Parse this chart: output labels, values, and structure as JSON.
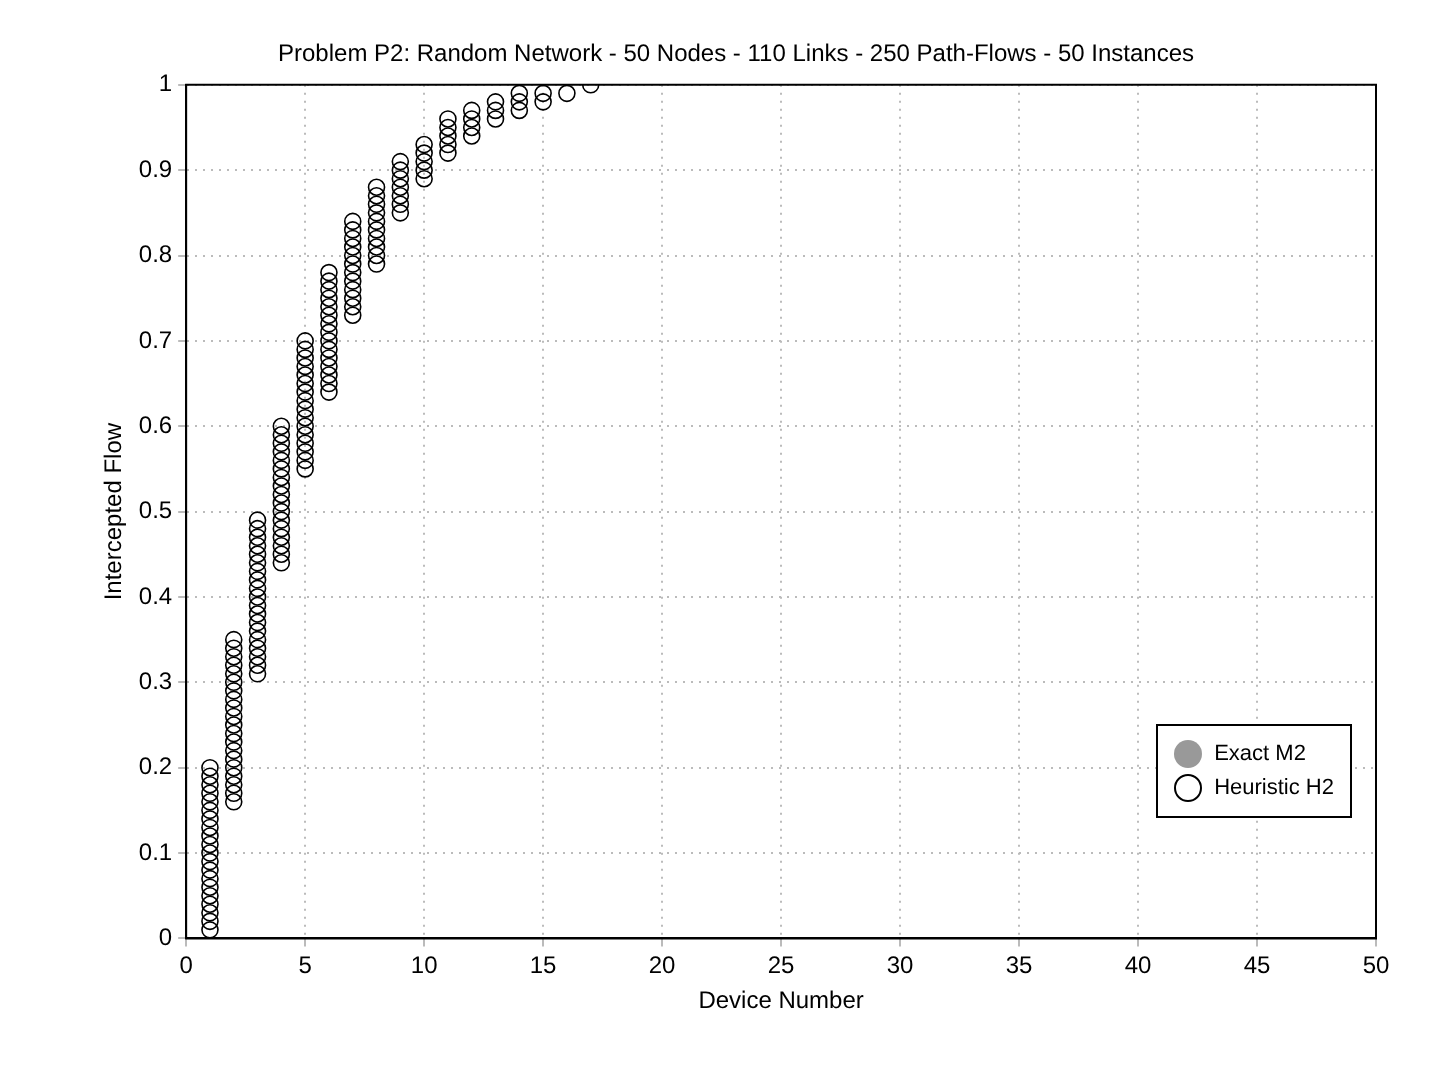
{
  "chart_data": {
    "type": "scatter",
    "title": "Problem P2: Random Network - 50 Nodes - 110 Links - 250 Path-Flows - 50 Instances",
    "xlabel": "Device Number",
    "ylabel": "Intercepted Flow",
    "xlim": [
      0,
      50
    ],
    "xticks": [
      0,
      5,
      10,
      15,
      20,
      25,
      30,
      35,
      40,
      45,
      50
    ],
    "ylim": [
      0,
      1
    ],
    "yticks": [
      0,
      0.1,
      0.2,
      0.3,
      0.4,
      0.5,
      0.6,
      0.7,
      0.8,
      0.9,
      1
    ],
    "grid": true,
    "legend": "bottom right",
    "marker": "circle",
    "series": [
      {
        "name": "Exact M2",
        "color": "#999999"
      },
      {
        "name": "Heuristic H2",
        "color": "#000000",
        "x": [
          1,
          1,
          1,
          1,
          1,
          1,
          1,
          1,
          1,
          1,
          1,
          1,
          1,
          1,
          1,
          1,
          1,
          1,
          1,
          1,
          2,
          2,
          2,
          2,
          2,
          2,
          2,
          2,
          2,
          2,
          2,
          2,
          2,
          2,
          2,
          2,
          2,
          2,
          2,
          2,
          3,
          3,
          3,
          3,
          3,
          3,
          3,
          3,
          3,
          3,
          3,
          3,
          3,
          3,
          3,
          3,
          3,
          3,
          3,
          4,
          4,
          4,
          4,
          4,
          4,
          4,
          4,
          4,
          4,
          4,
          4,
          4,
          4,
          4,
          4,
          4,
          5,
          5,
          5,
          5,
          5,
          5,
          5,
          5,
          5,
          5,
          5,
          5,
          5,
          5,
          5,
          5,
          6,
          6,
          6,
          6,
          6,
          6,
          6,
          6,
          6,
          6,
          6,
          6,
          6,
          6,
          6,
          7,
          7,
          7,
          7,
          7,
          7,
          7,
          7,
          7,
          7,
          7,
          7,
          8,
          8,
          8,
          8,
          8,
          8,
          8,
          8,
          8,
          8,
          9,
          9,
          9,
          9,
          9,
          9,
          9,
          10,
          10,
          10,
          10,
          10,
          11,
          11,
          11,
          11,
          11,
          12,
          12,
          12,
          12,
          13,
          13,
          13,
          14,
          14,
          14,
          15,
          15,
          16,
          17
        ],
        "values": [
          0.01,
          0.02,
          0.03,
          0.04,
          0.05,
          0.06,
          0.07,
          0.08,
          0.09,
          0.1,
          0.11,
          0.12,
          0.13,
          0.14,
          0.15,
          0.16,
          0.17,
          0.18,
          0.19,
          0.2,
          0.16,
          0.17,
          0.18,
          0.19,
          0.2,
          0.21,
          0.22,
          0.23,
          0.24,
          0.25,
          0.26,
          0.27,
          0.28,
          0.29,
          0.3,
          0.31,
          0.32,
          0.33,
          0.34,
          0.35,
          0.31,
          0.32,
          0.33,
          0.34,
          0.35,
          0.36,
          0.37,
          0.38,
          0.39,
          0.4,
          0.41,
          0.42,
          0.43,
          0.44,
          0.45,
          0.46,
          0.47,
          0.48,
          0.49,
          0.44,
          0.45,
          0.46,
          0.47,
          0.48,
          0.49,
          0.5,
          0.51,
          0.52,
          0.53,
          0.54,
          0.55,
          0.56,
          0.57,
          0.58,
          0.59,
          0.6,
          0.55,
          0.56,
          0.57,
          0.58,
          0.59,
          0.6,
          0.61,
          0.62,
          0.63,
          0.64,
          0.65,
          0.66,
          0.67,
          0.68,
          0.69,
          0.7,
          0.64,
          0.65,
          0.66,
          0.67,
          0.68,
          0.69,
          0.7,
          0.71,
          0.72,
          0.73,
          0.74,
          0.75,
          0.76,
          0.77,
          0.78,
          0.73,
          0.74,
          0.75,
          0.76,
          0.77,
          0.78,
          0.79,
          0.8,
          0.81,
          0.82,
          0.83,
          0.84,
          0.79,
          0.8,
          0.81,
          0.82,
          0.83,
          0.84,
          0.85,
          0.86,
          0.87,
          0.88,
          0.85,
          0.86,
          0.87,
          0.88,
          0.89,
          0.9,
          0.91,
          0.89,
          0.9,
          0.91,
          0.92,
          0.93,
          0.92,
          0.93,
          0.94,
          0.95,
          0.96,
          0.94,
          0.95,
          0.96,
          0.97,
          0.96,
          0.97,
          0.98,
          0.97,
          0.98,
          0.99,
          0.98,
          0.99,
          0.99,
          1
        ]
      }
    ]
  }
}
